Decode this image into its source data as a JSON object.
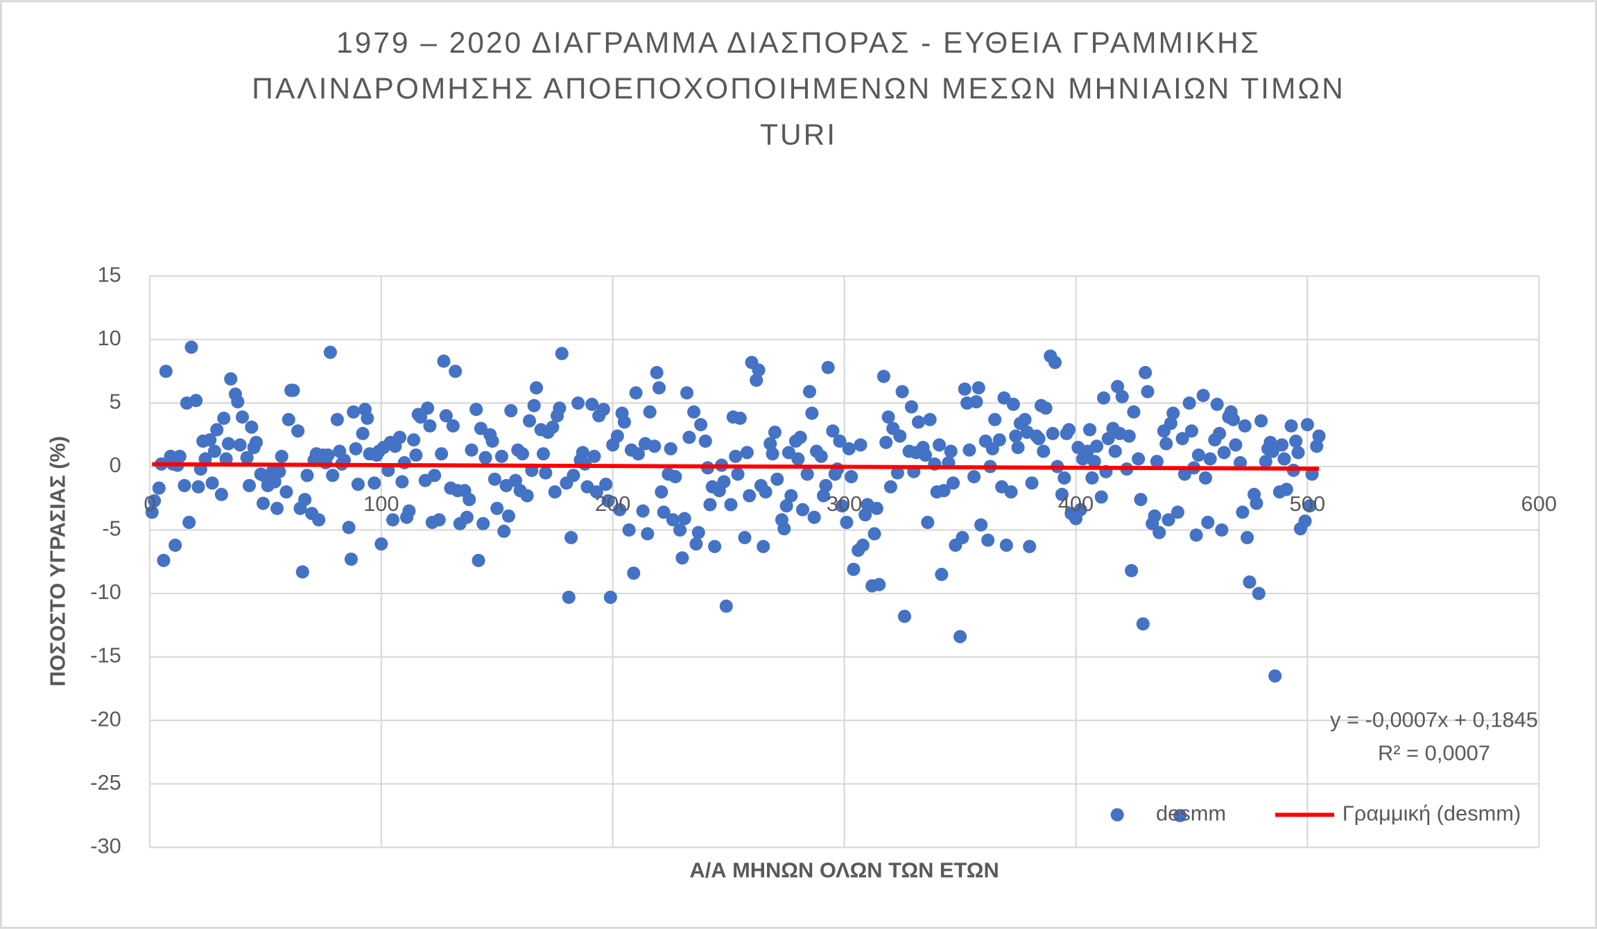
{
  "chart_data": {
    "type": "scatter",
    "title": [
      "1979 – 2020 ΔΙΑΓΡΑΜΜΑ ΔΙΑΣΠΟΡΑΣ - ΕΥΘΕΙΑ ΓΡΑΜΜΙΚΗΣ",
      "ΠΑΛΙΝΔΡΟΜΗΣΗΣ ΑΠΟΕΠΟΧΟΠΟΙΗΜΕΝΩΝ ΜΕΣΩΝ ΜΗΝΙΑΙΩΝ ΤΙΜΩΝ",
      "TURI"
    ],
    "x_label": "Α/Α ΜΗΝΩΝ ΟΛΩΝ ΤΩΝ ΕΤΩΝ",
    "y_label": "ΠΟΣΟΣΤΟ ΥΓΡΑΣΙΑΣ (%)",
    "xlim": [
      0,
      600
    ],
    "xticks": [
      0,
      100,
      200,
      300,
      400,
      500,
      600
    ],
    "ylim": [
      -30,
      15
    ],
    "yticks": [
      15,
      10,
      5,
      0,
      -5,
      -10,
      -15,
      -20,
      -25,
      -30
    ],
    "grid": true,
    "legend": "bottom-right",
    "annotations": [
      "y = -0,0007x + 0,1845",
      "R² = 0,0007"
    ],
    "series": [
      {
        "name": "desmm",
        "color": "#4472c4",
        "x": [
          1,
          2,
          4,
          5,
          6,
          7,
          9,
          10,
          11,
          12,
          13,
          15,
          16,
          17,
          18,
          20,
          21,
          22,
          23,
          24,
          26,
          27,
          28,
          29,
          31,
          32,
          33,
          34,
          35,
          37,
          38,
          39,
          40,
          42,
          43,
          44,
          45,
          46,
          48,
          49,
          50,
          51,
          53,
          54,
          55,
          56,
          57,
          59,
          60,
          61,
          62,
          64,
          65,
          66,
          67,
          68,
          70,
          71,
          72,
          73,
          75,
          76,
          77,
          78,
          79,
          81,
          82,
          83,
          84,
          86,
          87,
          88,
          89,
          90,
          92,
          93,
          94,
          95,
          97,
          98,
          99,
          100,
          101,
          103,
          104,
          105,
          106,
          108,
          109,
          110,
          111,
          112,
          114,
          115,
          116,
          117,
          119,
          120,
          121,
          122,
          123,
          125,
          126,
          127,
          128,
          130,
          131,
          132,
          133,
          134,
          136,
          137,
          138,
          139,
          141,
          142,
          143,
          144,
          145,
          147,
          148,
          149,
          150,
          152,
          153,
          154,
          155,
          156,
          158,
          159,
          160,
          161,
          163,
          164,
          165,
          166,
          167,
          169,
          170,
          171,
          172,
          174,
          175,
          176,
          177,
          178,
          180,
          181,
          182,
          183,
          185,
          186,
          187,
          188,
          189,
          191,
          192,
          193,
          194,
          196,
          197,
          198,
          199,
          200,
          202,
          203,
          204,
          205,
          207,
          208,
          209,
          210,
          211,
          213,
          214,
          215,
          216,
          218,
          219,
          220,
          221,
          222,
          224,
          225,
          226,
          227,
          229,
          230,
          231,
          232,
          233,
          235,
          236,
          237,
          238,
          240,
          241,
          242,
          243,
          244,
          246,
          247,
          248,
          249,
          251,
          252,
          253,
          254,
          255,
          257,
          258,
          259,
          260,
          262,
          263,
          264,
          265,
          266,
          268,
          269,
          270,
          271,
          273,
          274,
          275,
          276,
          277,
          279,
          280,
          281,
          282,
          284,
          285,
          286,
          287,
          288,
          290,
          291,
          292,
          293,
          295,
          296,
          297,
          298,
          299,
          301,
          302,
          303,
          304,
          306,
          307,
          308,
          309,
          310,
          312,
          313,
          314,
          315,
          317,
          318,
          319,
          320,
          321,
          323,
          324,
          325,
          326,
          328,
          329,
          330,
          331,
          332,
          334,
          335,
          336,
          337,
          339,
          340,
          341,
          342,
          343,
          345,
          346,
          347,
          348,
          350,
          351,
          352,
          353,
          354,
          356,
          357,
          358,
          359,
          361,
          362,
          363,
          364,
          365,
          367,
          368,
          369,
          370,
          372,
          373,
          374,
          375,
          376,
          378,
          379,
          380,
          381,
          383,
          384,
          385,
          386,
          387,
          389,
          390,
          391,
          392,
          394,
          395,
          396,
          397,
          398,
          400,
          401,
          402,
          403,
          405,
          406,
          407,
          408,
          409,
          411,
          412,
          413,
          414,
          416,
          417,
          418,
          419,
          420,
          422,
          423,
          424,
          425,
          427,
          428,
          429,
          430,
          431,
          433,
          434,
          435,
          436,
          438,
          439,
          440,
          441,
          442,
          444,
          445,
          446,
          447,
          449,
          450,
          451,
          452,
          453,
          455,
          456,
          457,
          458,
          460,
          461,
          462,
          463,
          464,
          466,
          467,
          468,
          469,
          471,
          472,
          473,
          474,
          475,
          477,
          478,
          479,
          480,
          482,
          483,
          484,
          485,
          486,
          488,
          489,
          490,
          491,
          493,
          494,
          495,
          496,
          497,
          499,
          500,
          501,
          502,
          504,
          505
        ],
        "values": [
          -3.6,
          -2.7,
          -1.7,
          0.2,
          -7.4,
          7.5,
          0.8,
          0.2,
          -6.2,
          0.1,
          0.8,
          -1.5,
          5,
          -4.4,
          9.4,
          5.2,
          -1.6,
          -0.2,
          2,
          0.6,
          2.1,
          -1.3,
          1.2,
          2.9,
          -2.2,
          3.8,
          0.6,
          1.8,
          6.9,
          5.7,
          5.1,
          1.7,
          3.9,
          0.7,
          -1.5,
          3.1,
          1.5,
          1.9,
          -0.6,
          -2.9,
          -0.8,
          -1.5,
          -0.4,
          -1.2,
          -3.3,
          -0.4,
          0.8,
          -2,
          3.7,
          6,
          6,
          2.8,
          -3.3,
          -8.3,
          -2.6,
          -0.7,
          -3.7,
          0.5,
          1,
          -4.2,
          0.9,
          0.3,
          0.9,
          9,
          -0.7,
          3.7,
          1.2,
          0.2,
          0.5,
          -4.8,
          -7.3,
          4.3,
          1.4,
          -1.4,
          2.6,
          4.5,
          3.8,
          1,
          -1.3,
          0.9,
          1.2,
          -6.1,
          1.5,
          -0.3,
          1.9,
          -4.2,
          1.6,
          2.3,
          -1.2,
          0.3,
          -4,
          -3.5,
          2.1,
          0.9,
          4.1,
          3.9,
          -1.1,
          4.6,
          3.2,
          -4.4,
          -0.7,
          -4.2,
          1,
          8.3,
          4,
          -1.7,
          3.2,
          7.5,
          -1.9,
          -4.5,
          -1.9,
          -4,
          -2.6,
          1.3,
          4.5,
          -7.4,
          3,
          -4.5,
          0.7,
          2.5,
          2,
          -1,
          -3.3,
          0.8,
          -5.1,
          -1.5,
          -3.9,
          4.4,
          -1.1,
          1.3,
          -1.9,
          1,
          -2.3,
          3.6,
          -0.3,
          4.8,
          6.2,
          2.9,
          1,
          -0.5,
          2.7,
          3.1,
          -2,
          4,
          4.6,
          8.9,
          -1.3,
          -10.3,
          -5.6,
          -0.7,
          5,
          0.5,
          1.1,
          0.2,
          -1.6,
          4.9,
          0.8,
          -2,
          4,
          4.5,
          -1.4,
          -2.7,
          -10.3,
          1.7,
          2.4,
          -3.4,
          4.2,
          3.5,
          -5,
          1.3,
          -8.4,
          5.8,
          1,
          -3.5,
          1.8,
          -5.3,
          4.3,
          1.6,
          7.4,
          6.2,
          -2,
          -3.6,
          -0.6,
          1.4,
          -4.2,
          -0.8,
          -5,
          -7.2,
          -4.1,
          5.8,
          2.3,
          4.3,
          -6.1,
          -5.2,
          3.3,
          2,
          -0.1,
          -3,
          -1.6,
          -6.3,
          -1.9,
          0.1,
          -1.2,
          -11,
          -3,
          3.9,
          0.8,
          -0.6,
          3.8,
          -5.6,
          1.1,
          -2.3,
          8.2,
          6.8,
          7.6,
          -1.5,
          -6.3,
          -2,
          1.8,
          1,
          2.7,
          -1,
          -4.2,
          -4.9,
          -3.1,
          1.1,
          -2.3,
          2,
          0.6,
          2.3,
          -3.4,
          -0.6,
          5.9,
          4.2,
          -4,
          1.2,
          0.8,
          -2.3,
          -1.5,
          7.8,
          2.8,
          -0.6,
          -0.2,
          2,
          -3.1,
          -4.4,
          1.4,
          -0.8,
          -8.1,
          -6.6,
          1.7,
          -6.2,
          -3.8,
          -3,
          -9.4,
          -5.3,
          -3.3,
          -9.3,
          7.1,
          1.9,
          3.9,
          -1.6,
          3,
          -0.5,
          2.4,
          5.9,
          -11.8,
          1.2,
          4.7,
          -0.4,
          1.1,
          3.5,
          1.5,
          0.9,
          -4.4,
          3.7,
          0.2,
          -2,
          1.7,
          -8.5,
          -1.9,
          0.3,
          1.2,
          -1.3,
          -6.2,
          -13.4,
          -5.6,
          6.1,
          5,
          1.3,
          -0.8,
          5.1,
          6.2,
          -4.6,
          2,
          -5.8,
          0,
          1.4,
          3.7,
          2.1,
          -1.6,
          5.4,
          -6.2,
          -2,
          4.9,
          2.4,
          1.5,
          3.4,
          3.7,
          2.7,
          -6.3,
          -1.3,
          2.4,
          2.2,
          4.8,
          1.2,
          4.6,
          8.7,
          2.6,
          8.2,
          0,
          -2.2,
          -0.9,
          2.6,
          2.9,
          -3.7,
          -4.1,
          1.5,
          -3.4,
          0.6,
          1.2,
          2.9,
          -0.9,
          0.4,
          1.6,
          -2.4,
          5.4,
          -0.4,
          2.2,
          3,
          1.2,
          6.3,
          2.6,
          5.5,
          -0.2,
          2.4,
          -8.2,
          4.3,
          0.6,
          -2.6,
          -12.4,
          7.4,
          5.9,
          -4.5,
          -3.9,
          0.4,
          -5.2,
          2.8,
          1.8,
          -4.2,
          3.4,
          4.2,
          -3.6,
          -27.5,
          2.2,
          -0.6,
          5,
          2.8,
          -0.1,
          -5.4,
          0.9,
          5.6,
          -0.9,
          -4.4,
          0.6,
          2.1,
          4.9,
          2.6,
          -5,
          1.1,
          3.9,
          4.3,
          3.7,
          1.7,
          0.3,
          -3.6,
          3.2,
          -5.6,
          -9.1,
          -2.2,
          -2.9,
          -10,
          3.6,
          0.4,
          1.4,
          1.9,
          1.2,
          -16.5,
          -2,
          1.7,
          0.6,
          -1.8,
          3.2,
          -0.3,
          2,
          1.1,
          -4.9,
          -4.3,
          3.3,
          -3.1,
          -0.6,
          1.6,
          2.4
        ]
      },
      {
        "name": "Γραμμική (desmm)",
        "type": "line",
        "color": "#ff0000",
        "x": [
          1,
          505
        ],
        "values": [
          0.1838,
          -0.169
        ]
      }
    ]
  }
}
